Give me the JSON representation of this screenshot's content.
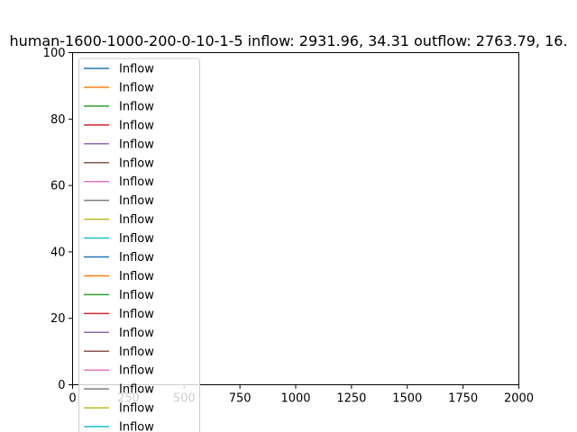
{
  "chart_data": {
    "type": "line",
    "title": "human-1600-1000-200-0-10-1-5 inflow: 2931.96, 34.31 outflow: 2763.79, 16.",
    "xlabel": "",
    "ylabel": "",
    "xlim": [
      0,
      2000
    ],
    "ylim": [
      0,
      100
    ],
    "x_ticks": [
      "0",
      "250",
      "500",
      "750",
      "1000",
      "1250",
      "1500",
      "1750",
      "2000"
    ],
    "y_ticks": [
      "0",
      "20",
      "40",
      "60",
      "80",
      "100"
    ],
    "grid": false,
    "legend_position": "top-left",
    "series": [
      {
        "name": "Inflow",
        "color": "#1f77b4",
        "values": []
      },
      {
        "name": "Inflow",
        "color": "#ff7f0e",
        "values": []
      },
      {
        "name": "Inflow",
        "color": "#2ca02c",
        "values": []
      },
      {
        "name": "Inflow",
        "color": "#d62728",
        "values": []
      },
      {
        "name": "Inflow",
        "color": "#9467bd",
        "values": []
      },
      {
        "name": "Inflow",
        "color": "#8c564b",
        "values": []
      },
      {
        "name": "Inflow",
        "color": "#e377c2",
        "values": []
      },
      {
        "name": "Inflow",
        "color": "#7f7f7f",
        "values": []
      },
      {
        "name": "Inflow",
        "color": "#bcbd22",
        "values": []
      },
      {
        "name": "Inflow",
        "color": "#17becf",
        "values": []
      },
      {
        "name": "Inflow",
        "color": "#1f77b4",
        "values": []
      },
      {
        "name": "Inflow",
        "color": "#ff7f0e",
        "values": []
      },
      {
        "name": "Inflow",
        "color": "#2ca02c",
        "values": []
      },
      {
        "name": "Inflow",
        "color": "#d62728",
        "values": []
      },
      {
        "name": "Inflow",
        "color": "#9467bd",
        "values": []
      },
      {
        "name": "Inflow",
        "color": "#8c564b",
        "values": []
      },
      {
        "name": "Inflow",
        "color": "#e377c2",
        "values": []
      },
      {
        "name": "Inflow",
        "color": "#7f7f7f",
        "values": []
      },
      {
        "name": "Inflow",
        "color": "#bcbd22",
        "values": []
      },
      {
        "name": "Inflow",
        "color": "#17becf",
        "values": []
      }
    ]
  }
}
